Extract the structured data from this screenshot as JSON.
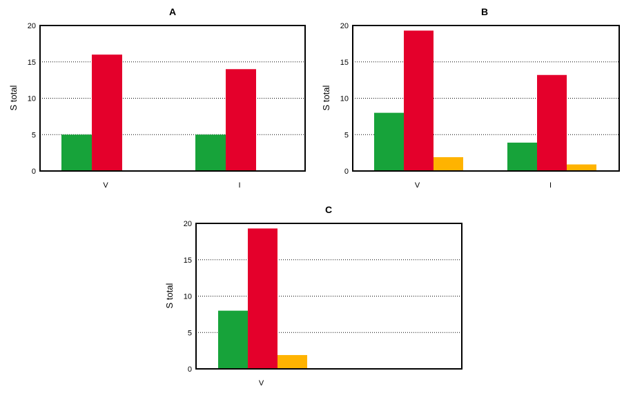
{
  "chart_data": [
    {
      "type": "bar",
      "title": "A",
      "xlabel": "",
      "ylabel": "S total",
      "ylim": [
        0,
        20
      ],
      "yticks": [
        0,
        5,
        10,
        15,
        20
      ],
      "grid": "horizontal dotted",
      "legend": "none",
      "categories": [
        "V",
        "I"
      ],
      "series": [
        {
          "color": "#17a33a",
          "values": [
            5,
            5
          ]
        },
        {
          "color": "#e4002b",
          "values": [
            16,
            14
          ]
        },
        {
          "color": "#ffb300",
          "values": [
            0,
            0
          ]
        }
      ]
    },
    {
      "type": "bar",
      "title": "B",
      "xlabel": "",
      "ylabel": "S total",
      "ylim": [
        0,
        20
      ],
      "yticks": [
        0,
        5,
        10,
        15,
        20
      ],
      "grid": "horizontal dotted",
      "legend": "none",
      "categories": [
        "V",
        "I"
      ],
      "series": [
        {
          "color": "#17a33a",
          "values": [
            8,
            3.9
          ]
        },
        {
          "color": "#e4002b",
          "values": [
            19.3,
            13.2
          ]
        },
        {
          "color": "#ffb300",
          "values": [
            1.9,
            0.9
          ]
        }
      ]
    },
    {
      "type": "bar",
      "title": "C",
      "xlabel": "",
      "ylabel": "S total",
      "ylim": [
        0,
        20
      ],
      "yticks": [
        0,
        5,
        10,
        15,
        20
      ],
      "grid": "horizontal dotted",
      "legend": "none",
      "categories": [
        "V",
        ""
      ],
      "series": [
        {
          "color": "#17a33a",
          "values": [
            8,
            0
          ]
        },
        {
          "color": "#e4002b",
          "values": [
            19.3,
            0
          ]
        },
        {
          "color": "#ffb300",
          "values": [
            1.9,
            0
          ]
        }
      ]
    }
  ]
}
